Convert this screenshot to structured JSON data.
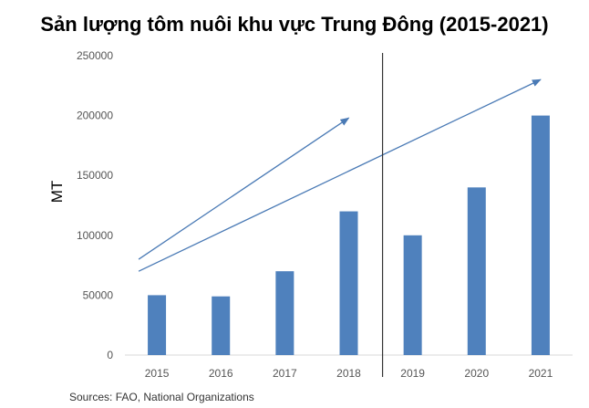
{
  "title": "Sản lượng tôm nuôi khu vực Trung Đông (2015-2021)",
  "source": "Sources: FAO, National Organizations",
  "chart_data": {
    "type": "bar",
    "title": "Sản lượng tôm nuôi khu vực Trung Đông (2015-2021)",
    "xlabel": "",
    "ylabel": "MT",
    "categories": [
      "2015",
      "2016",
      "2017",
      "2018",
      "2019",
      "2020",
      "2021"
    ],
    "values": [
      50000,
      49000,
      70000,
      120000,
      100000,
      140000,
      200000
    ],
    "ylim": [
      0,
      250000
    ],
    "yticks": [
      0,
      50000,
      100000,
      150000,
      200000,
      250000
    ],
    "ytick_labels": [
      "0",
      "50000",
      "100000",
      "150000",
      "200000",
      "250000"
    ],
    "grid": false,
    "bar_color": "#4f81bd",
    "annotations": [
      {
        "type": "arrow",
        "from": {
          "x": "2015",
          "y": 80000
        },
        "to": {
          "x": "2018",
          "y": 198000
        }
      },
      {
        "type": "arrow",
        "from": {
          "x": "2015",
          "y": 70000
        },
        "to": {
          "x": "2021",
          "y": 230000
        }
      },
      {
        "type": "divider",
        "between": [
          "2018",
          "2019"
        ]
      }
    ]
  }
}
